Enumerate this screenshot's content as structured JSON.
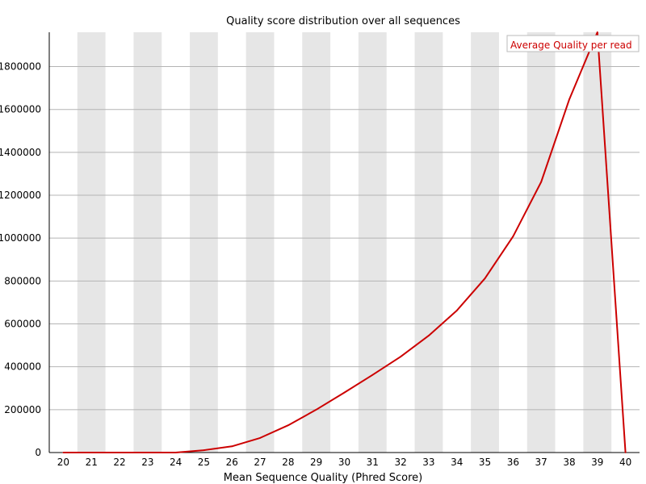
{
  "chart_data": {
    "type": "line",
    "title": "Quality score distribution over all sequences",
    "xlabel": "Mean Sequence Quality (Phred Score)",
    "ylabel": "",
    "x": [
      20,
      21,
      22,
      23,
      24,
      25,
      26,
      27,
      28,
      29,
      30,
      31,
      32,
      33,
      34,
      35,
      36,
      37,
      38,
      39,
      40
    ],
    "xlim": [
      20,
      40
    ],
    "ylim": [
      0,
      1960000
    ],
    "yticks": [
      0,
      200000,
      400000,
      600000,
      800000,
      1000000,
      1200000,
      1400000,
      1600000,
      1800000
    ],
    "grid": true,
    "legend_position": "top-right",
    "series": [
      {
        "name": "Average Quality per read",
        "color": "#cc0000",
        "values": [
          0,
          0,
          0,
          0,
          0,
          11000,
          29000,
          68000,
          127000,
          200000,
          280000,
          362000,
          447000,
          545000,
          662000,
          812000,
          1008000,
          1262000,
          1647000,
          1960000,
          0
        ]
      }
    ]
  }
}
